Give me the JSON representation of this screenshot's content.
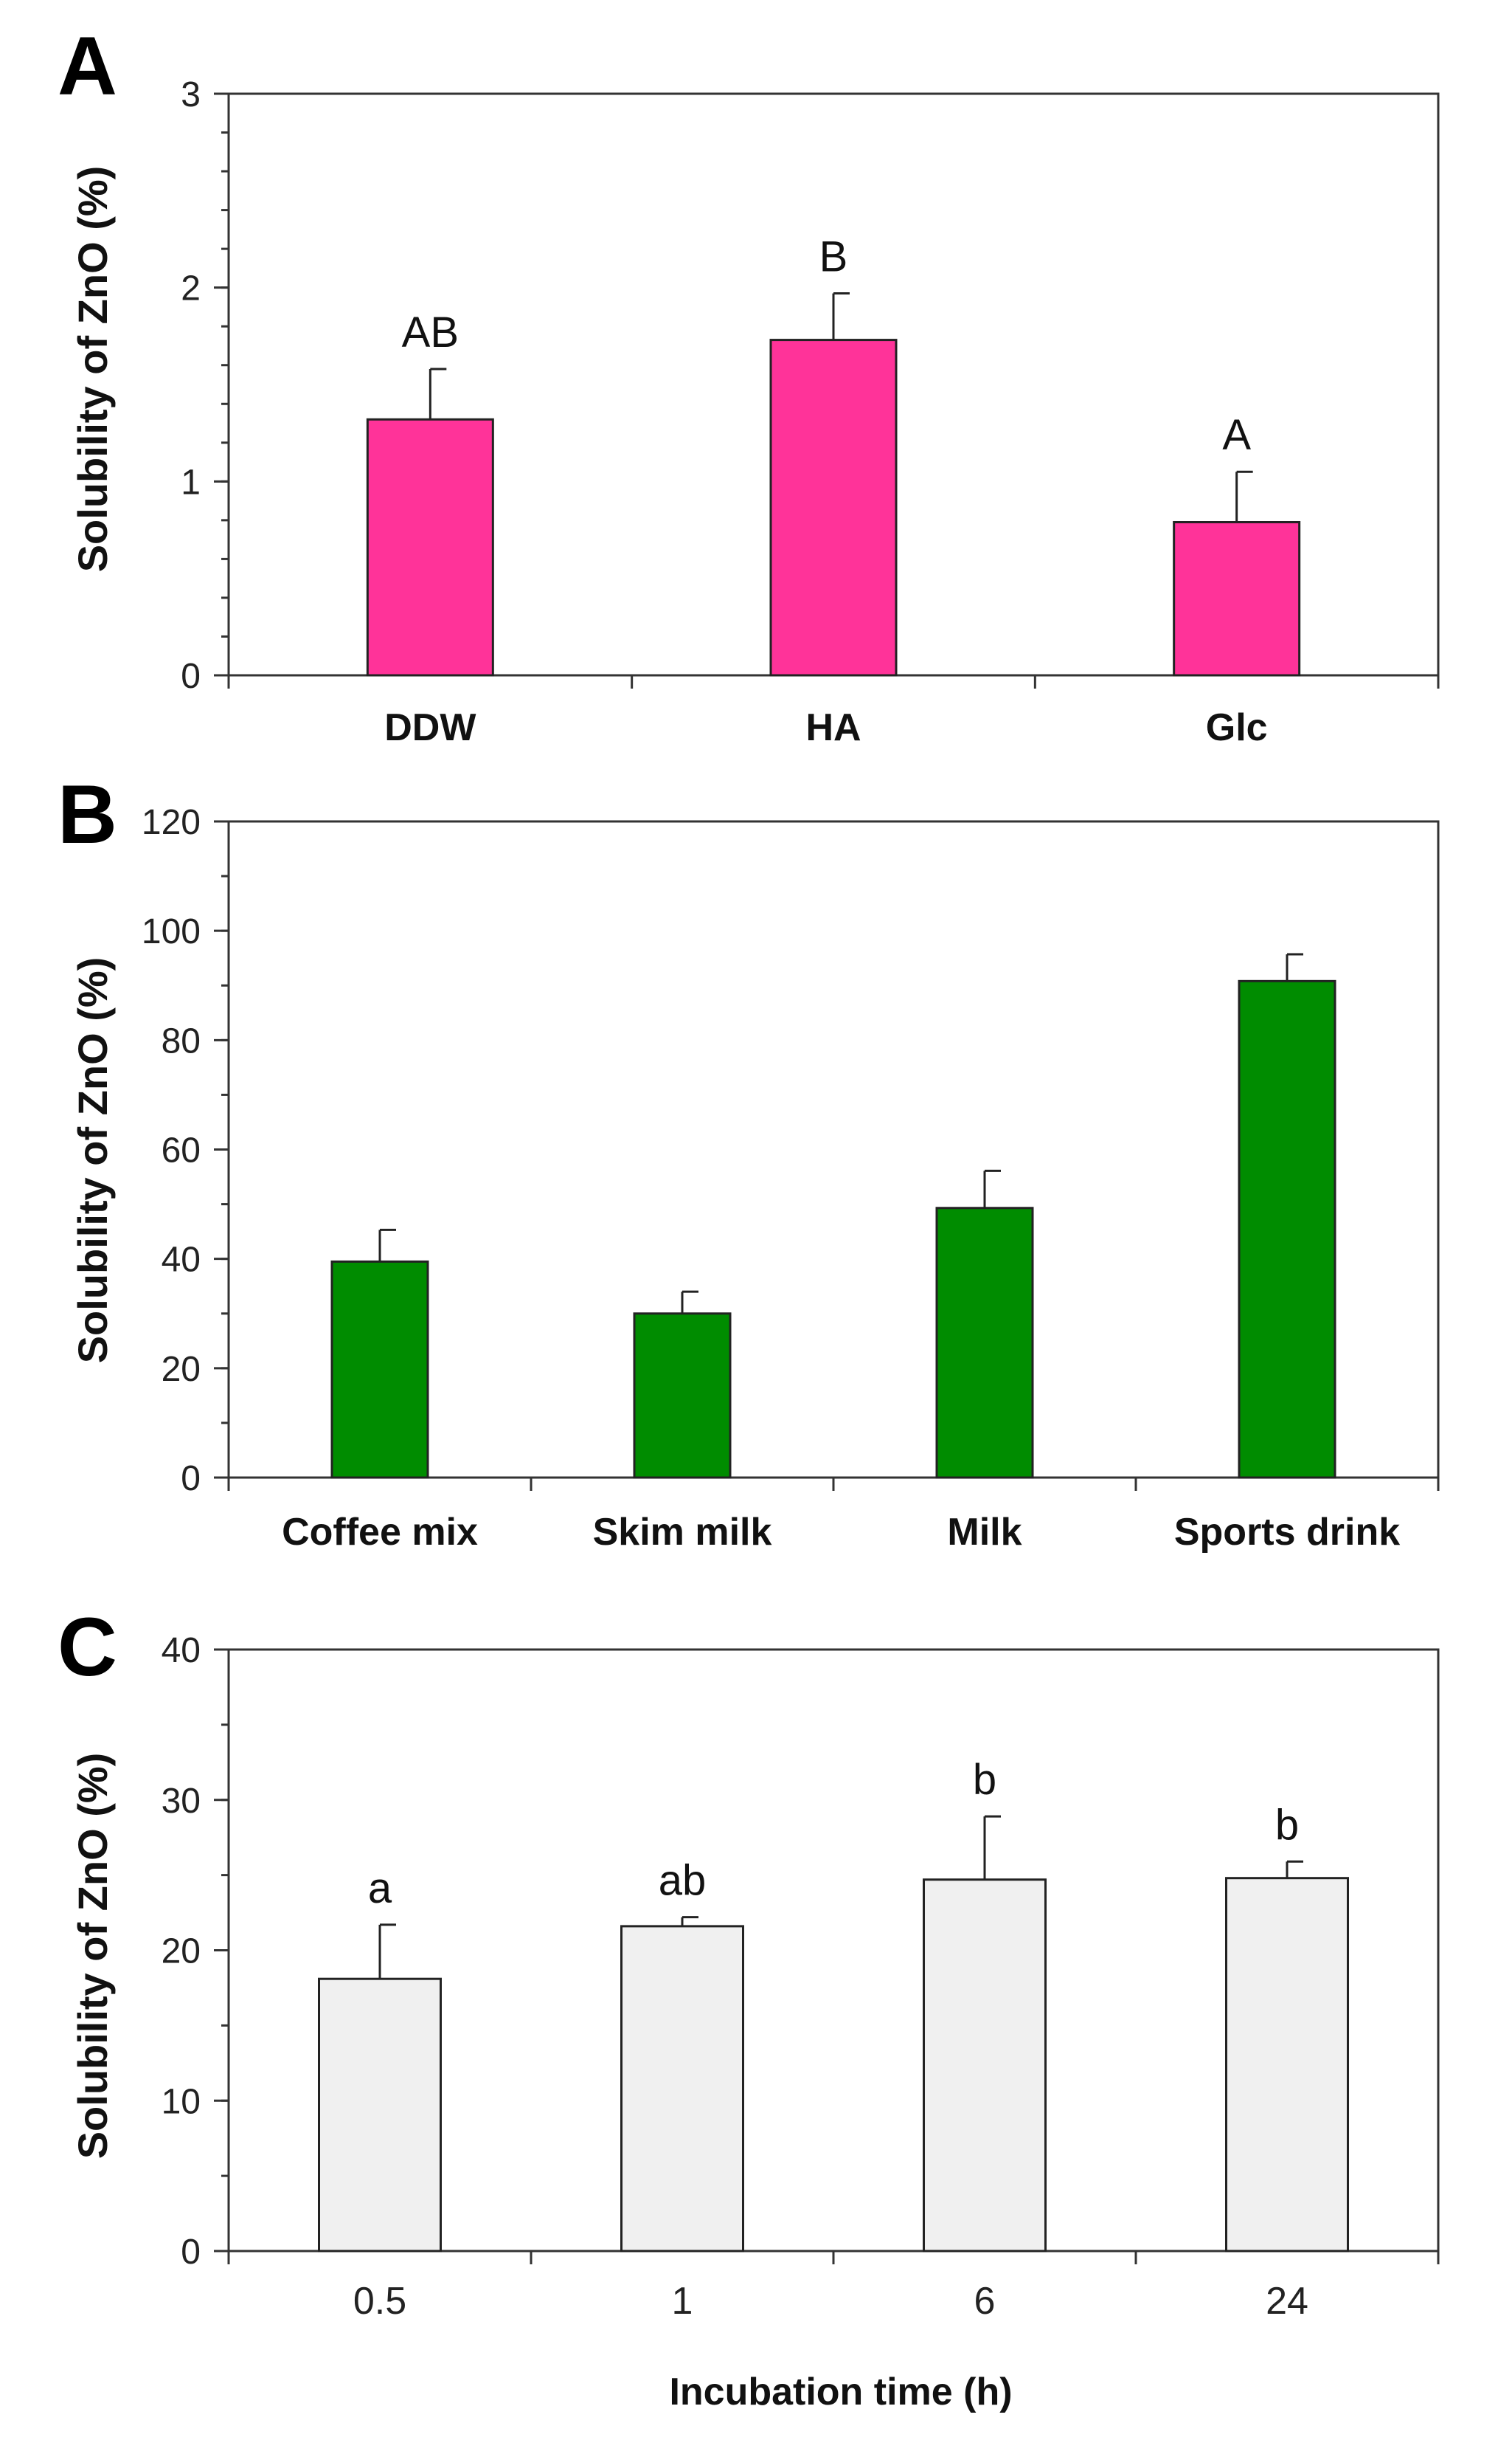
{
  "chart_data": [
    {
      "type": "bar",
      "panel": "A",
      "categories": [
        "DDW",
        "HA",
        "Glc"
      ],
      "values": [
        1.32,
        1.73,
        0.79
      ],
      "errors": [
        0.26,
        0.24,
        0.26
      ],
      "significance": [
        "AB",
        "B",
        "A"
      ],
      "ylabel": "Solubility of ZnO (%)",
      "xlabel": "",
      "ylim": [
        0,
        3
      ],
      "yticks": [
        0,
        1,
        2,
        3
      ],
      "minor_step": 0.2,
      "bar_color": "#ff3399",
      "category_style": "bold"
    },
    {
      "type": "bar",
      "panel": "B",
      "categories": [
        "Coffee mix",
        "Skim milk",
        "Milk",
        "Sports drink"
      ],
      "values": [
        39.5,
        30,
        49.3,
        90.8
      ],
      "errors": [
        5.8,
        4,
        6.8,
        4.9
      ],
      "significance": [
        "",
        "",
        "",
        ""
      ],
      "ylabel": "Solubility of ZnO (%)",
      "xlabel": "",
      "ylim": [
        0,
        120
      ],
      "yticks": [
        0,
        20,
        40,
        60,
        80,
        100,
        120
      ],
      "minor_step": 10,
      "bar_color": "#008c00",
      "category_style": "bold"
    },
    {
      "type": "bar",
      "panel": "C",
      "categories": [
        "0.5",
        "1",
        "6",
        "24"
      ],
      "values": [
        18.1,
        21.6,
        24.7,
        24.8
      ],
      "errors": [
        3.6,
        0.6,
        4.2,
        1.1
      ],
      "significance": [
        "a",
        "ab",
        "b",
        "b"
      ],
      "ylabel": "Solubility of ZnO (%)",
      "xlabel": "Incubation time (h)",
      "ylim": [
        0,
        40
      ],
      "yticks": [
        0,
        10,
        20,
        30,
        40
      ],
      "minor_step": 5,
      "bar_color": "#f0f0f0",
      "category_style": "normal"
    }
  ]
}
